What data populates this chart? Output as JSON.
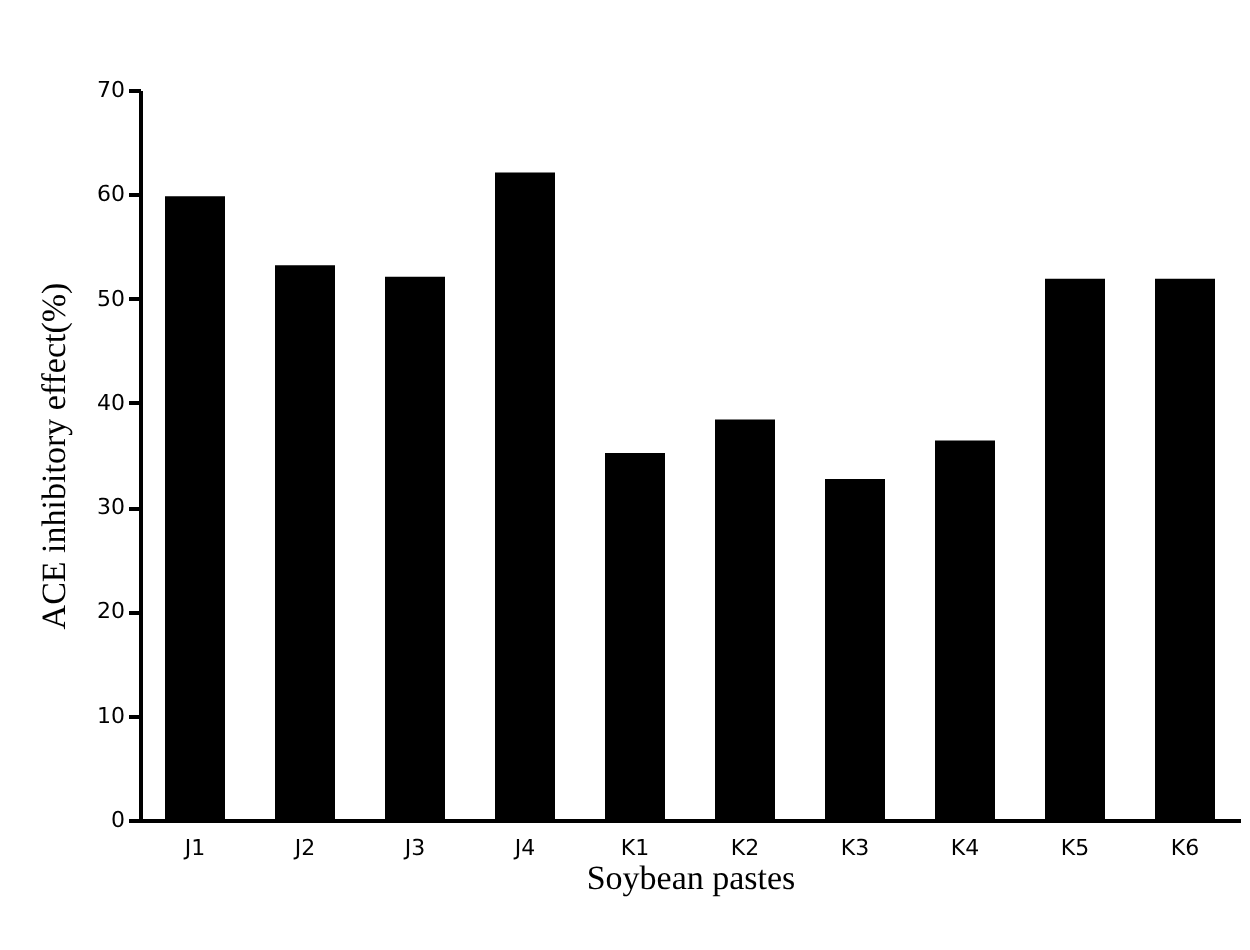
{
  "chart_data": {
    "type": "bar",
    "xlabel": "Soybean pastes",
    "ylabel": "ACE inhibitory effect(%)",
    "categories": [
      "J1",
      "J2",
      "J3",
      "J4",
      "K1",
      "K2",
      "K3",
      "K4",
      "K5",
      "K6"
    ],
    "values": [
      59.8,
      53.2,
      52.1,
      62.1,
      35.2,
      38.4,
      32.7,
      36.4,
      51.9,
      51.9
    ],
    "color": "#000000",
    "ylim": [
      0,
      70
    ],
    "yticks": [
      0,
      10,
      20,
      30,
      40,
      50,
      60,
      70
    ],
    "grid": false
  }
}
